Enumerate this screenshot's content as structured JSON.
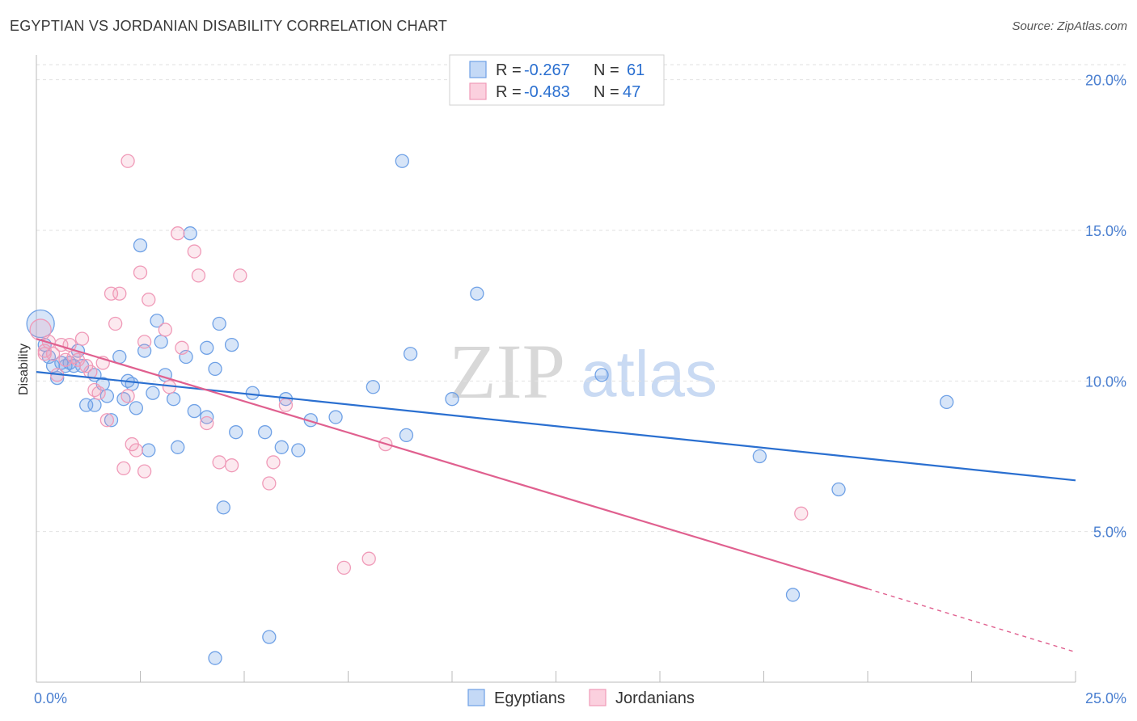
{
  "header": {
    "title": "EGYPTIAN VS JORDANIAN DISABILITY CORRELATION CHART",
    "source": "Source: ZipAtlas.com"
  },
  "stats": {
    "egyptians": {
      "r_label": "R = ",
      "r_value": "-0.267",
      "n_label": "N = ",
      "n_value": "61",
      "color": "#6fa1e6"
    },
    "jordanians": {
      "r_label": "R = ",
      "r_value": "-0.483",
      "n_label": "N = ",
      "n_value": "47",
      "color": "#f09ab8"
    }
  },
  "watermark": {
    "zip": "ZIP",
    "atlas": "atlas"
  },
  "chart_data": {
    "type": "scatter",
    "ylabel": "Disability",
    "xlabel": "",
    "xlim": [
      0,
      25
    ],
    "ylim": [
      0,
      20.5
    ],
    "x_tick_labels": [
      "0.0%",
      "25.0%"
    ],
    "y_ticks": [
      5,
      10,
      15,
      20
    ],
    "y_tick_labels": [
      "5.0%",
      "10.0%",
      "15.0%",
      "20.0%"
    ],
    "grid": true,
    "legend_position": "bottom-center",
    "series": [
      {
        "name": "Egyptians",
        "color": "#6fa1e6",
        "trend_color": "#2a6fd0",
        "trend": {
          "x0": 0,
          "y0": 10.3,
          "x1": 25,
          "y1": 6.7
        },
        "points": [
          [
            0.1,
            11.9
          ],
          [
            0.3,
            10.8
          ],
          [
            0.5,
            10.1
          ],
          [
            0.6,
            10.6
          ],
          [
            0.7,
            10.5
          ],
          [
            0.4,
            10.5
          ],
          [
            1.0,
            11.0
          ],
          [
            0.9,
            10.5
          ],
          [
            1.4,
            10.2
          ],
          [
            1.6,
            9.9
          ],
          [
            1.2,
            9.2
          ],
          [
            1.4,
            9.2
          ],
          [
            1.8,
            8.7
          ],
          [
            2.0,
            10.8
          ],
          [
            2.2,
            10.0
          ],
          [
            2.3,
            9.9
          ],
          [
            2.4,
            9.1
          ],
          [
            2.5,
            14.5
          ],
          [
            2.6,
            11.0
          ],
          [
            2.7,
            7.7
          ],
          [
            2.8,
            9.6
          ],
          [
            2.9,
            12.0
          ],
          [
            3.0,
            11.3
          ],
          [
            3.1,
            10.2
          ],
          [
            3.3,
            9.4
          ],
          [
            3.4,
            7.8
          ],
          [
            3.6,
            10.8
          ],
          [
            3.7,
            14.9
          ],
          [
            3.8,
            9.0
          ],
          [
            4.1,
            11.1
          ],
          [
            4.1,
            8.8
          ],
          [
            4.3,
            10.4
          ],
          [
            4.4,
            11.9
          ],
          [
            4.5,
            5.8
          ],
          [
            4.7,
            11.2
          ],
          [
            4.8,
            8.3
          ],
          [
            5.2,
            9.6
          ],
          [
            5.5,
            8.3
          ],
          [
            5.9,
            7.8
          ],
          [
            6.0,
            9.4
          ],
          [
            6.3,
            7.7
          ],
          [
            6.6,
            8.7
          ],
          [
            7.2,
            8.8
          ],
          [
            8.1,
            9.8
          ],
          [
            8.8,
            17.3
          ],
          [
            8.9,
            8.2
          ],
          [
            9.0,
            10.9
          ],
          [
            10.0,
            9.4
          ],
          [
            10.6,
            12.9
          ],
          [
            13.6,
            10.2
          ],
          [
            17.4,
            7.5
          ],
          [
            18.2,
            2.9
          ],
          [
            19.3,
            6.4
          ],
          [
            21.9,
            9.3
          ],
          [
            4.3,
            0.8
          ],
          [
            5.6,
            1.5
          ],
          [
            1.1,
            10.5
          ],
          [
            0.8,
            10.6
          ],
          [
            0.2,
            11.2
          ],
          [
            1.7,
            9.5
          ],
          [
            2.1,
            9.4
          ]
        ]
      },
      {
        "name": "Jordanians",
        "color": "#f09ab8",
        "trend_color": "#e0608f",
        "trend": {
          "x0": 0,
          "y0": 11.4,
          "x1": 20,
          "y1": 3.1
        },
        "trend_dashed": {
          "x0": 20,
          "y0": 3.1,
          "x1": 25,
          "y1": 1.0
        },
        "points": [
          [
            0.1,
            11.7
          ],
          [
            0.2,
            11.0
          ],
          [
            0.3,
            11.3
          ],
          [
            0.4,
            10.9
          ],
          [
            0.5,
            10.2
          ],
          [
            0.6,
            11.2
          ],
          [
            0.7,
            10.7
          ],
          [
            0.8,
            11.2
          ],
          [
            0.9,
            10.8
          ],
          [
            1.0,
            10.7
          ],
          [
            1.1,
            11.4
          ],
          [
            1.2,
            10.5
          ],
          [
            1.3,
            10.3
          ],
          [
            1.4,
            9.7
          ],
          [
            1.5,
            9.6
          ],
          [
            1.6,
            10.6
          ],
          [
            1.7,
            8.7
          ],
          [
            1.8,
            12.9
          ],
          [
            1.9,
            11.9
          ],
          [
            2.0,
            12.9
          ],
          [
            2.1,
            7.1
          ],
          [
            2.2,
            9.5
          ],
          [
            2.2,
            17.3
          ],
          [
            2.3,
            7.9
          ],
          [
            2.4,
            7.7
          ],
          [
            2.5,
            13.6
          ],
          [
            2.6,
            7.0
          ],
          [
            2.6,
            11.3
          ],
          [
            2.7,
            12.7
          ],
          [
            3.1,
            11.7
          ],
          [
            3.2,
            9.8
          ],
          [
            3.4,
            14.9
          ],
          [
            3.5,
            11.1
          ],
          [
            3.8,
            14.3
          ],
          [
            3.9,
            13.5
          ],
          [
            4.1,
            8.6
          ],
          [
            4.4,
            7.3
          ],
          [
            4.7,
            7.2
          ],
          [
            4.9,
            13.5
          ],
          [
            5.6,
            6.6
          ],
          [
            5.7,
            7.3
          ],
          [
            6.0,
            9.2
          ],
          [
            8.4,
            7.9
          ],
          [
            7.4,
            3.8
          ],
          [
            8.0,
            4.1
          ],
          [
            18.4,
            5.6
          ],
          [
            0.2,
            10.9
          ]
        ]
      }
    ]
  }
}
